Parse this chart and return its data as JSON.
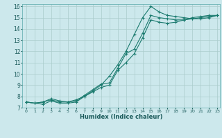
{
  "xlabel": "Humidex (Indice chaleur)",
  "bg_color": "#cce8ec",
  "grid_color": "#aacccc",
  "line_color": "#1a7a6e",
  "xlim": [
    -0.5,
    23.3
  ],
  "ylim": [
    7.0,
    16.2
  ],
  "xticks": [
    0,
    1,
    2,
    3,
    4,
    5,
    6,
    7,
    8,
    9,
    10,
    11,
    12,
    13,
    14,
    15,
    16,
    17,
    18,
    19,
    20,
    21,
    22,
    23
  ],
  "yticks": [
    7,
    8,
    9,
    10,
    11,
    12,
    13,
    14,
    15,
    16
  ],
  "line1_x": [
    0,
    1,
    2,
    3,
    4,
    5,
    6,
    7,
    8,
    9,
    10,
    11,
    12,
    13,
    14,
    15,
    16,
    17,
    18,
    19,
    20,
    21,
    22,
    23
  ],
  "line1_y": [
    7.5,
    7.4,
    7.3,
    7.6,
    7.4,
    7.4,
    7.5,
    8.0,
    8.5,
    9.0,
    9.8,
    10.8,
    12.0,
    13.5,
    15.0,
    16.0,
    15.5,
    15.2,
    15.1,
    15.0,
    14.9,
    14.9,
    15.0,
    15.2
  ],
  "line2_x": [
    0,
    1,
    2,
    3,
    4,
    5,
    6,
    7,
    8,
    9,
    10,
    11,
    12,
    13,
    14,
    15,
    16,
    17,
    18,
    19,
    20,
    21,
    22,
    23
  ],
  "line2_y": [
    7.5,
    7.4,
    7.5,
    7.7,
    7.5,
    7.5,
    7.6,
    8.1,
    8.6,
    9.1,
    9.2,
    10.5,
    11.8,
    12.2,
    13.6,
    15.2,
    15.0,
    14.9,
    14.8,
    14.8,
    14.9,
    15.0,
    15.1,
    15.2
  ],
  "line3_x": [
    0,
    1,
    2,
    3,
    4,
    5,
    6,
    7,
    8,
    9,
    10,
    11,
    12,
    13,
    14,
    15,
    16,
    17,
    18,
    19,
    20,
    21,
    22,
    23
  ],
  "line3_y": [
    7.5,
    7.4,
    7.5,
    7.8,
    7.6,
    7.5,
    7.7,
    8.0,
    8.4,
    8.8,
    9.0,
    10.3,
    11.0,
    11.8,
    13.2,
    14.8,
    14.6,
    14.5,
    14.6,
    14.8,
    15.0,
    15.1,
    15.2,
    15.2
  ]
}
